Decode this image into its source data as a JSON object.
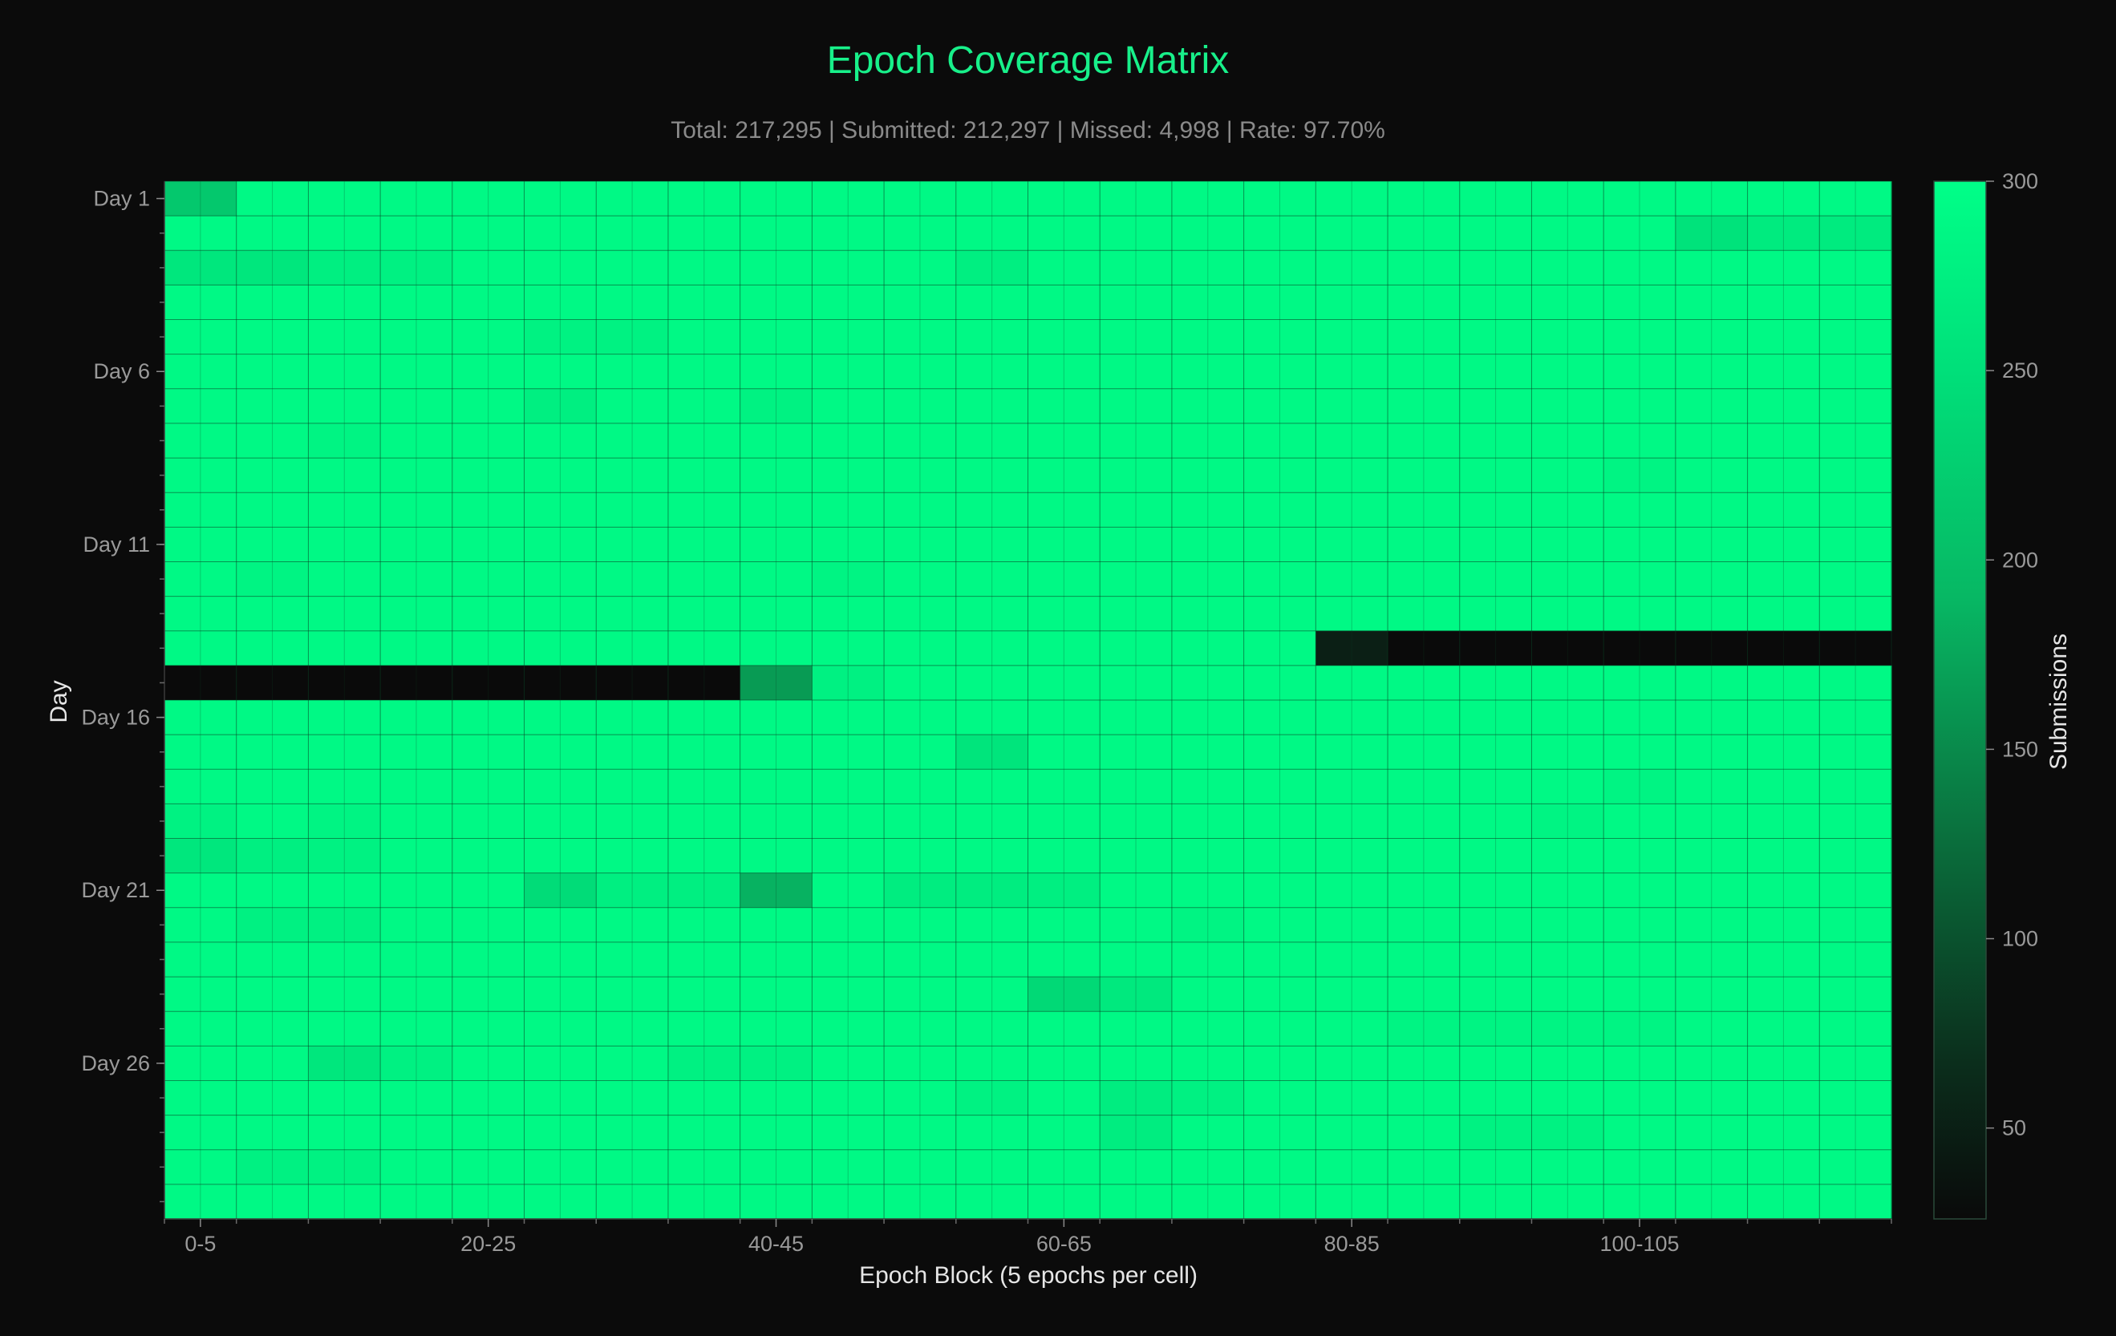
{
  "title": "Epoch Coverage Matrix",
  "subtitle": "Total: 217,295 | Submitted: 212,297 | Missed: 4,998 | Rate: 97.70%",
  "colors": {
    "background": "#0b0b0b",
    "accent": "#18f08a",
    "cmap_low": "#0a0a0a",
    "cmap_high": "#00ff88",
    "grid": "#0a3f24"
  },
  "chart_data": {
    "type": "heatmap",
    "title": "Epoch Coverage Matrix",
    "xlabel": "Epoch Block (5 epochs per cell)",
    "ylabel": "Day",
    "colorbar_label": "Submissions",
    "color_range": [
      26,
      300
    ],
    "colorbar_ticks": [
      50,
      100,
      150,
      200,
      250,
      300
    ],
    "x_ticks": [
      {
        "index": 0,
        "label": "0-5"
      },
      {
        "index": 4,
        "label": "20-25"
      },
      {
        "index": 8,
        "label": "40-45"
      },
      {
        "index": 12,
        "label": "60-65"
      },
      {
        "index": 16,
        "label": "80-85"
      },
      {
        "index": 20,
        "label": "100-105"
      }
    ],
    "y_ticks": [
      {
        "index": 0,
        "label": "Day 1"
      },
      {
        "index": 5,
        "label": "Day 6"
      },
      {
        "index": 10,
        "label": "Day 11"
      },
      {
        "index": 15,
        "label": "Day 16"
      },
      {
        "index": 20,
        "label": "Day 21"
      },
      {
        "index": 25,
        "label": "Day 26"
      }
    ],
    "n_cols": 24,
    "n_rows": 30,
    "default_value": 290,
    "rows": [
      {
        "day": 1,
        "cells": {
          "0": 215
        }
      },
      {
        "day": 2,
        "cells": {
          "21": 255,
          "22": 268,
          "23": 268
        }
      },
      {
        "day": 3,
        "cells": {
          "0": 262,
          "1": 262,
          "2": 275,
          "3": 278,
          "11": 275
        }
      },
      {
        "day": 4,
        "cells": {}
      },
      {
        "day": 5,
        "cells": {
          "5": 280,
          "6": 280
        }
      },
      {
        "day": 6,
        "cells": {}
      },
      {
        "day": 7,
        "cells": {
          "5": 275,
          "8": 280
        }
      },
      {
        "day": 8,
        "cells": {
          "2": 282
        }
      },
      {
        "day": 9,
        "cells": {
          "20": 282
        }
      },
      {
        "day": 10,
        "cells": {}
      },
      {
        "day": 11,
        "cells": {}
      },
      {
        "day": 12,
        "cells": {
          "1": 282,
          "9": 282
        }
      },
      {
        "day": 13,
        "cells": {}
      },
      {
        "day": 14,
        "cells": {
          "0": 290,
          "1": 290,
          "2": 290,
          "3": 290,
          "4": 290,
          "5": 290,
          "6": 290,
          "7": 290,
          "8": 290,
          "9": 290,
          "10": 290,
          "11": 290,
          "12": 290,
          "13": 290,
          "14": 290,
          "15": 290,
          "16": 50,
          "17": 26,
          "18": 26,
          "19": 26,
          "20": 26,
          "21": 26,
          "22": 26,
          "23": 26
        }
      },
      {
        "day": 15,
        "cells": {
          "0": 26,
          "1": 26,
          "2": 26,
          "3": 26,
          "4": 26,
          "5": 26,
          "6": 26,
          "7": 26,
          "8": 165,
          "9": 278
        }
      },
      {
        "day": 16,
        "cells": {}
      },
      {
        "day": 17,
        "cells": {
          "11": 258
        }
      },
      {
        "day": 18,
        "cells": {
          "20": 282
        }
      },
      {
        "day": 19,
        "cells": {
          "0": 280,
          "2": 282,
          "19": 282
        }
      },
      {
        "day": 20,
        "cells": {
          "0": 262,
          "1": 275,
          "2": 280
        }
      },
      {
        "day": 21,
        "cells": {
          "5": 245,
          "6": 275,
          "7": 275,
          "8": 185,
          "10": 272,
          "11": 272,
          "12": 275
        }
      },
      {
        "day": 22,
        "cells": {
          "1": 278,
          "2": 278,
          "14": 282
        }
      },
      {
        "day": 23,
        "cells": {}
      },
      {
        "day": 24,
        "cells": {
          "12": 240,
          "13": 265
        }
      },
      {
        "day": 25,
        "cells": {
          "17": 282,
          "18": 282,
          "19": 282,
          "20": 282
        }
      },
      {
        "day": 26,
        "cells": {
          "2": 262,
          "3": 278,
          "7": 278,
          "8": 278
        }
      },
      {
        "day": 27,
        "cells": {
          "11": 280,
          "13": 272,
          "14": 278
        }
      },
      {
        "day": 28,
        "cells": {
          "13": 272,
          "18": 280,
          "19": 280
        }
      },
      {
        "day": 29,
        "cells": {
          "1": 278,
          "2": 280
        }
      },
      {
        "day": 30,
        "cells": {}
      }
    ]
  }
}
